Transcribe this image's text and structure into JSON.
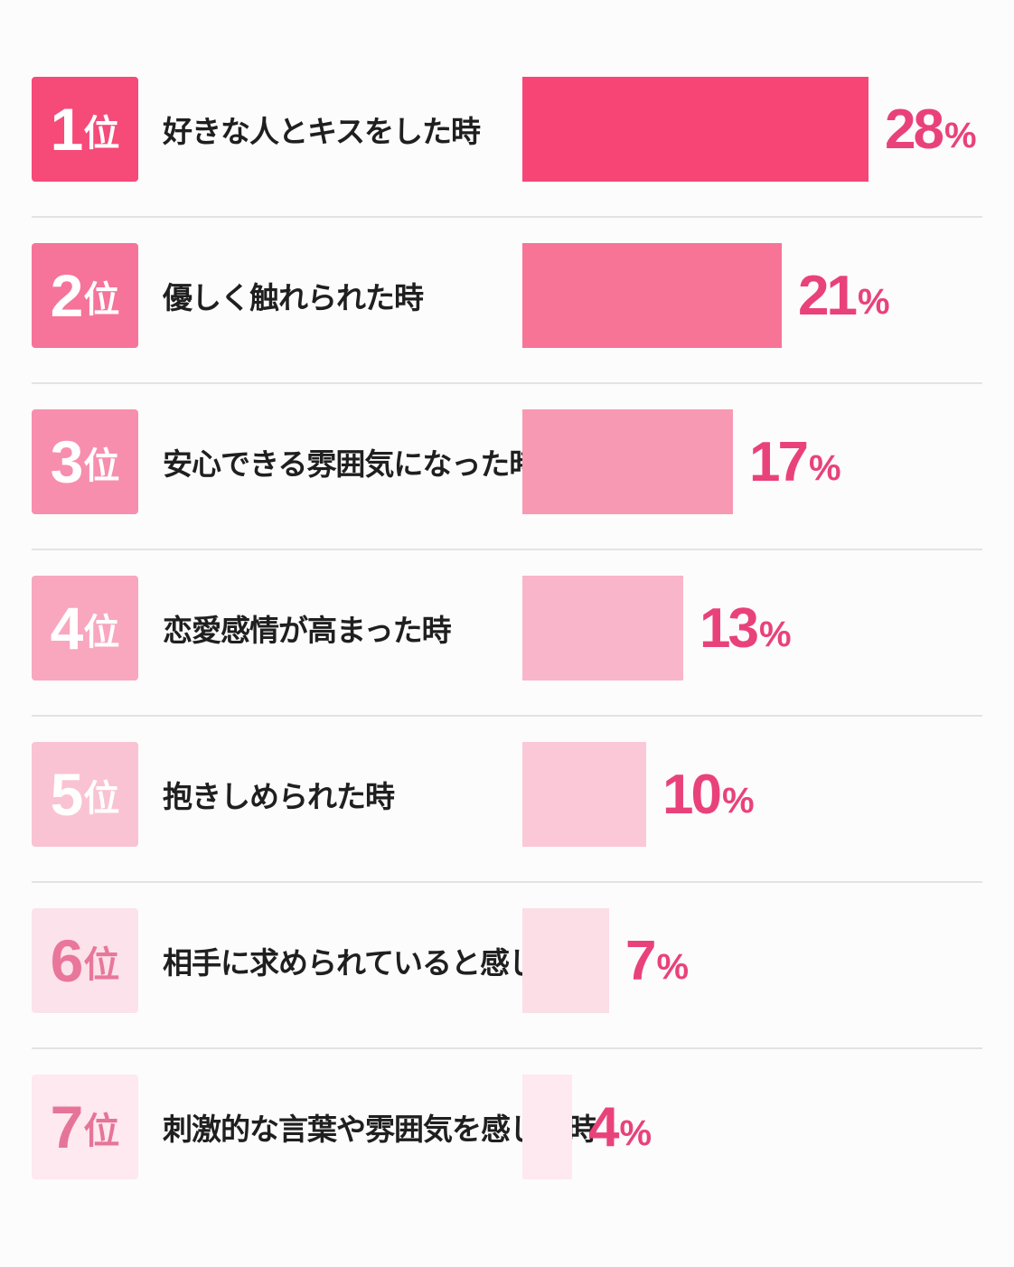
{
  "chart_data": {
    "type": "bar",
    "orientation": "horizontal",
    "rank_suffix": "位",
    "value_unit": "%",
    "xlim": [
      0,
      28
    ],
    "categories": [
      "好きな人とキスをした時",
      "優しく触れられた時",
      "安心できる雰囲気になった時",
      "恋愛感情が高まった時",
      "抱きしめられた時",
      "相手に求められていると感じた時",
      "刺激的な言葉や雰囲気を感じた時"
    ],
    "ranks": [
      "1",
      "2",
      "3",
      "4",
      "5",
      "6",
      "7"
    ],
    "values": [
      28,
      21,
      17,
      13,
      10,
      7,
      4
    ],
    "colors": {
      "bars": [
        "#f74676",
        "#f77497",
        "#f899b3",
        "#f9b5c9",
        "#fac8d7",
        "#fcdee7",
        "#fde9ef"
      ],
      "badges": [
        "#f64a78",
        "#f6739a",
        "#f78ead",
        "#f8a7bf",
        "#f9c3d3",
        "#fce2ea",
        "#fde9ef"
      ],
      "badge_text": [
        "#ffffff",
        "#ffffff",
        "#ffffff",
        "#ffffff",
        "#ffffff",
        "#e9769b",
        "#e67499"
      ],
      "value_text": "#e9427a",
      "label_text": "#1f1f1f",
      "divider": "#e4e2e3"
    }
  }
}
